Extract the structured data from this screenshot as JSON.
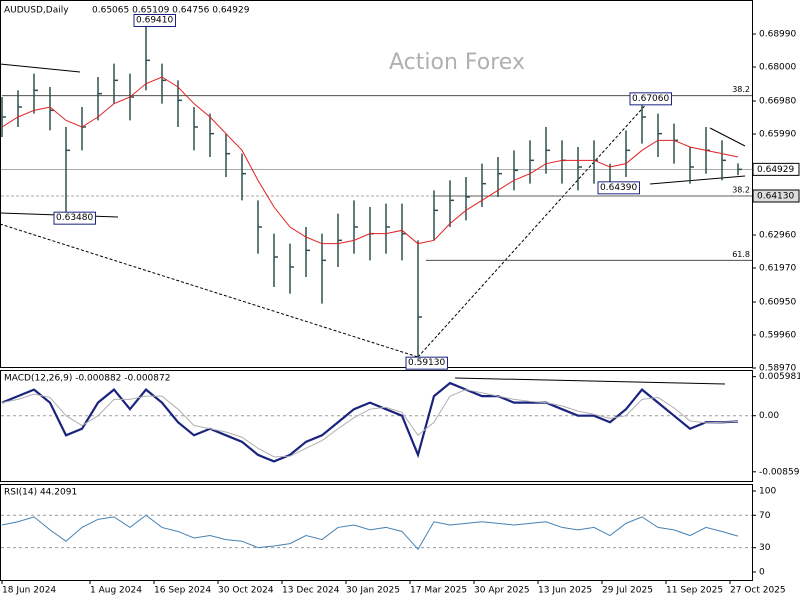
{
  "chart_data": {
    "type": "ohlc",
    "title": "AUDUSD,Daily",
    "ohlc_text": "0.65065 0.65109 0.64756 0.64929",
    "watermark": "Action Forex",
    "xlim": [
      0,
      370
    ],
    "xticks": [
      {
        "value": 0,
        "label": "18 Jun 2024"
      },
      {
        "value": 44,
        "label": "1 Aug 2024"
      },
      {
        "value": 76,
        "label": "16 Sep 2024"
      },
      {
        "value": 108,
        "label": "30 Oct 2024"
      },
      {
        "value": 140,
        "label": "13 Dec 2024"
      },
      {
        "value": 172,
        "label": "30 Jan 2025"
      },
      {
        "value": 204,
        "label": "17 Mar 2025"
      },
      {
        "value": 236,
        "label": "30 Apr 2025"
      },
      {
        "value": 268,
        "label": "13 Jun 2025"
      },
      {
        "value": 300,
        "label": "29 Jul 2025"
      },
      {
        "value": 332,
        "label": "11 Sep 2025"
      },
      {
        "value": 364,
        "label": "27 Oct 2025"
      }
    ],
    "x": [
      0,
      8,
      16,
      24,
      32,
      40,
      48,
      56,
      64,
      72,
      80,
      88,
      96,
      104,
      112,
      120,
      128,
      136,
      144,
      152,
      160,
      168,
      176,
      184,
      192,
      200,
      208,
      216,
      224,
      232,
      240,
      248,
      256,
      264,
      272,
      280,
      288,
      296,
      304,
      312,
      320,
      328,
      336,
      344,
      352,
      360,
      368
    ],
    "ylim": [
      0.59,
      0.7001
    ],
    "yticks": [
      {
        "value": 0.6899,
        "label": "0.68990"
      },
      {
        "value": 0.68,
        "label": "0.68000"
      },
      {
        "value": 0.6698,
        "label": "0.66980"
      },
      {
        "value": 0.6599,
        "label": "0.65990"
      },
      {
        "value": 0.6296,
        "label": "0.62960"
      },
      {
        "value": 0.6197,
        "label": "0.61970"
      },
      {
        "value": 0.6095,
        "label": "0.60950"
      },
      {
        "value": 0.5996,
        "label": "0.59960"
      },
      {
        "value": 0.5897,
        "label": "0.58970"
      }
    ],
    "last_price": {
      "value": 0.64929,
      "label": "0.64929"
    },
    "level_price": {
      "value": 0.6413,
      "label": "0.64130"
    },
    "color": "#2f4f4f",
    "high": [
      0.671,
      0.673,
      0.678,
      0.674,
      0.662,
      0.668,
      0.677,
      0.681,
      0.678,
      0.6941,
      0.681,
      0.676,
      0.668,
      0.666,
      0.66,
      0.654,
      0.64,
      0.63,
      0.627,
      0.632,
      0.63,
      0.636,
      0.64,
      0.638,
      0.639,
      0.639,
      0.628,
      0.643,
      0.646,
      0.647,
      0.651,
      0.653,
      0.655,
      0.658,
      0.662,
      0.658,
      0.656,
      0.658,
      0.651,
      0.661,
      0.6706,
      0.666,
      0.663,
      0.656,
      0.662,
      0.658,
      0.65109
    ],
    "low": [
      0.659,
      0.662,
      0.666,
      0.661,
      0.6348,
      0.655,
      0.664,
      0.669,
      0.664,
      0.673,
      0.669,
      0.662,
      0.655,
      0.653,
      0.647,
      0.64,
      0.624,
      0.614,
      0.612,
      0.617,
      0.609,
      0.62,
      0.624,
      0.622,
      0.624,
      0.622,
      0.5913,
      0.628,
      0.632,
      0.634,
      0.638,
      0.641,
      0.643,
      0.645,
      0.648,
      0.645,
      0.643,
      0.645,
      0.6439,
      0.647,
      0.657,
      0.653,
      0.651,
      0.645,
      0.648,
      0.646,
      0.64756
    ],
    "close": [
      0.665,
      0.668,
      0.673,
      0.667,
      0.655,
      0.662,
      0.672,
      0.676,
      0.671,
      0.682,
      0.676,
      0.67,
      0.662,
      0.66,
      0.654,
      0.648,
      0.632,
      0.623,
      0.62,
      0.625,
      0.622,
      0.628,
      0.632,
      0.63,
      0.632,
      0.63,
      0.605,
      0.637,
      0.64,
      0.641,
      0.645,
      0.648,
      0.649,
      0.652,
      0.655,
      0.652,
      0.65,
      0.652,
      0.645,
      0.655,
      0.665,
      0.66,
      0.658,
      0.65,
      0.655,
      0.652,
      0.64929
    ],
    "ma": {
      "color": "#e02020",
      "values": [
        0.662,
        0.665,
        0.667,
        0.668,
        0.664,
        0.662,
        0.665,
        0.669,
        0.671,
        0.675,
        0.677,
        0.674,
        0.669,
        0.665,
        0.66,
        0.655,
        0.646,
        0.638,
        0.632,
        0.629,
        0.627,
        0.627,
        0.628,
        0.63,
        0.63,
        0.631,
        0.627,
        0.628,
        0.633,
        0.637,
        0.64,
        0.643,
        0.646,
        0.648,
        0.651,
        0.652,
        0.652,
        0.652,
        0.65,
        0.651,
        0.655,
        0.658,
        0.658,
        0.656,
        0.655,
        0.654,
        0.653
      ]
    },
    "price_labels": [
      {
        "value": 0.6941,
        "label": "0.69410",
        "x": 72
      },
      {
        "value": 0.6706,
        "label": "0.67060",
        "x": 320
      },
      {
        "value": 0.6439,
        "label": "0.64390",
        "x": 304
      },
      {
        "value": 0.6348,
        "label": "0.63480",
        "x": 32
      },
      {
        "value": 0.5913,
        "label": "0.59130",
        "x": 208
      }
    ],
    "fib_lines": [
      {
        "label": "38.2",
        "value": 0.6714,
        "x": 0
      },
      {
        "label": "38.2",
        "value": 0.6413,
        "x": 216
      },
      {
        "label": "61.8",
        "value": 0.622,
        "x": 212
      }
    ],
    "macd": {
      "label": "MACD(12,26,9) -0.000882 -0.000872",
      "ylim": [
        -0.01,
        0.007
      ],
      "yticks": [
        0.005981,
        {
          "value": 0,
          "label": "0.00"
        },
        -0.00859
      ],
      "series": [
        {
          "color": "#1a237e",
          "values": [
            0.002,
            0.003,
            0.004,
            0.002,
            -0.003,
            -0.002,
            0.002,
            0.004,
            0.001,
            0.004,
            0.002,
            -0.001,
            -0.003,
            -0.002,
            -0.003,
            -0.004,
            -0.006,
            -0.007,
            -0.006,
            -0.004,
            -0.003,
            -0.001,
            0.001,
            0.002,
            0.001,
            0.0,
            -0.006,
            0.003,
            0.005,
            0.004,
            0.003,
            0.003,
            0.002,
            0.002,
            0.002,
            0.001,
            0.0,
            0.0,
            -0.001,
            0.001,
            0.004,
            0.002,
            0.0,
            -0.002,
            -0.001,
            -0.001,
            -0.000882
          ]
        },
        {
          "color": "#b0b0b0",
          "values": [
            0.002,
            0.0025,
            0.0033,
            0.0028,
            0.0,
            -0.0015,
            0.0,
            0.0025,
            0.0025,
            0.003,
            0.003,
            0.001,
            -0.0015,
            -0.002,
            -0.0025,
            -0.0033,
            -0.005,
            -0.0063,
            -0.0062,
            -0.005,
            -0.0038,
            -0.002,
            -0.0003,
            0.001,
            0.0013,
            0.0005,
            -0.003,
            -0.001,
            0.003,
            0.004,
            0.0035,
            0.003,
            0.0025,
            0.0022,
            0.002,
            0.0015,
            0.0007,
            0.0002,
            -0.0004,
            0.0,
            0.0025,
            0.0028,
            0.0012,
            -0.0008,
            -0.0011,
            -0.001,
            -0.000872
          ]
        }
      ]
    },
    "rsi": {
      "label": "RSI(14) 44.2091",
      "ylim": [
        -9.9,
        108.6
      ],
      "yticks": [
        100,
        70,
        30,
        0
      ],
      "levels": [
        70,
        30
      ],
      "color": "#4682b4",
      "values": [
        58,
        62,
        68,
        52,
        38,
        55,
        65,
        68,
        55,
        70,
        55,
        50,
        42,
        45,
        40,
        38,
        30,
        32,
        35,
        45,
        40,
        55,
        58,
        52,
        55,
        50,
        28,
        62,
        58,
        60,
        62,
        60,
        58,
        60,
        62,
        55,
        52,
        55,
        45,
        60,
        68,
        55,
        52,
        45,
        55,
        50,
        44.2091
      ]
    }
  }
}
